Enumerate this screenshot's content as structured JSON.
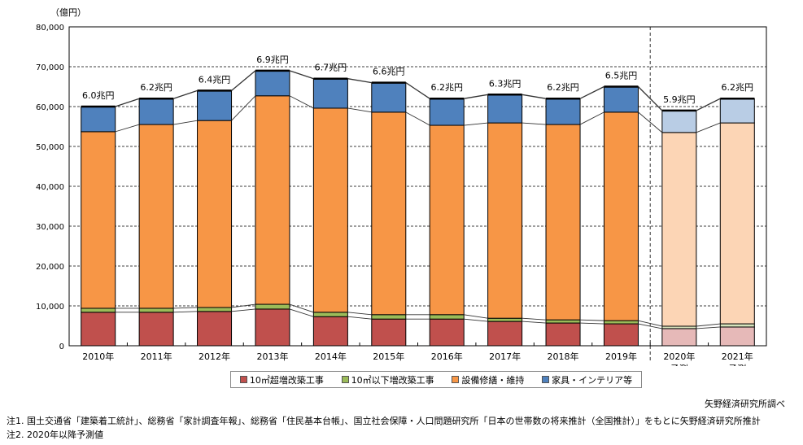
{
  "chart_data": {
    "type": "bar",
    "stacked": true,
    "ylabel": "（億円）",
    "ylim": [
      0,
      80000
    ],
    "yticks": [
      "0",
      "10,000",
      "20,000",
      "30,000",
      "40,000",
      "50,000",
      "60,000",
      "70,000",
      "80,000"
    ],
    "grid": true,
    "legend_position": "bottom",
    "categories": [
      [
        "2010年"
      ],
      [
        "2011年"
      ],
      [
        "2012年"
      ],
      [
        "2013年"
      ],
      [
        "2014年"
      ],
      [
        "2015年"
      ],
      [
        "2016年"
      ],
      [
        "2017年"
      ],
      [
        "2018年"
      ],
      [
        "2019年"
      ],
      [
        "2020年",
        "予測"
      ],
      [
        "2021年",
        "予測"
      ]
    ],
    "forecast_from_index": 10,
    "series": [
      {
        "name": "10㎡超増改築工事",
        "color": "#c0504d",
        "forecast_color": "#e6b9b8",
        "values": [
          8400,
          8400,
          8600,
          9200,
          7300,
          6700,
          6700,
          6100,
          5700,
          5500,
          4300,
          4700
        ]
      },
      {
        "name": "10㎡以下増改築工事",
        "color": "#9bbb59",
        "forecast_color": "#d7e4bd",
        "values": [
          1000,
          1000,
          1000,
          1200,
          1100,
          1100,
          1100,
          800,
          800,
          800,
          600,
          800
        ]
      },
      {
        "name": "設備修繕・維持",
        "color": "#f79646",
        "forecast_color": "#fcd5b5",
        "values": [
          44300,
          46100,
          46900,
          52300,
          51200,
          50800,
          47500,
          49000,
          49000,
          52300,
          48600,
          50400
        ]
      },
      {
        "name": "家具・インテリア等",
        "color": "#4f81bd",
        "forecast_color": "#b9cde5",
        "values": [
          6300,
          6500,
          7500,
          6300,
          7400,
          7400,
          6700,
          7100,
          6500,
          6400,
          5500,
          6100
        ]
      }
    ],
    "total_labels": [
      "6.0兆円",
      "6.2兆円",
      "6.4兆円",
      "6.9兆円",
      "6.7兆円",
      "6.6兆円",
      "6.2兆円",
      "6.3兆円",
      "6.2兆円",
      "6.5兆円",
      "5.9兆円",
      "6.2兆円"
    ]
  },
  "source": "矢野経済研究所調べ",
  "notes": [
    "注1. 国土交通省「建築着工統計」、総務省「家計調査年報」、総務省「住民基本台帳」、国立社会保障・人口問題研究所「日本の世帯数の将来推計（全国推計）」をもとに矢野経済研究所推計",
    "注2. 2020年以降予測値"
  ]
}
